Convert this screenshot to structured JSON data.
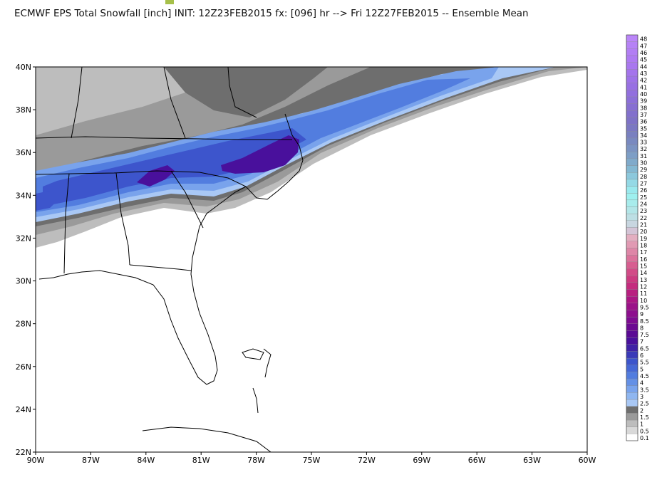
{
  "title": "ECMWF EPS Total Snowfall [inch] INIT: 12Z23FEB2015 fx: [096] hr --> Fri 12Z27FEB2015 -- Ensemble Mean",
  "map": {
    "lat_labels": [
      "40N",
      "38N",
      "36N",
      "34N",
      "32N",
      "30N",
      "28N",
      "26N",
      "24N",
      "22N"
    ],
    "lon_labels": [
      "90W",
      "87W",
      "84W",
      "81W",
      "78W",
      "75W",
      "72W",
      "69W",
      "66W",
      "63W",
      "60W"
    ],
    "lat_range": [
      22,
      40
    ],
    "lon_range": [
      -90,
      -60
    ]
  },
  "colorbar": {
    "levels": [
      "0.1",
      "0.5",
      "1",
      "1.5",
      "2",
      "2.5",
      "3",
      "3.5",
      "4",
      "4.5",
      "5",
      "5.5",
      "6",
      "6.5",
      "7",
      "7.5",
      "8",
      "8.5",
      "9",
      "9.5",
      "10",
      "11",
      "12",
      "13",
      "14",
      "15",
      "16",
      "17",
      "18",
      "19",
      "20",
      "21",
      "22",
      "23",
      "24",
      "25",
      "26",
      "27",
      "28",
      "29",
      "30",
      "31",
      "32",
      "33",
      "34",
      "35",
      "36",
      "37",
      "38",
      "39",
      "40",
      "41",
      "42",
      "43",
      "44",
      "45",
      "46",
      "47",
      "48"
    ],
    "colors": [
      "#ffffff",
      "#d9d9d9",
      "#bdbdbd",
      "#9a9a9a",
      "#6e6e6e",
      "#a9c8f5",
      "#8fb6f0",
      "#79a3ec",
      "#6490e6",
      "#527ddf",
      "#4668d6",
      "#3d55cc",
      "#3a3ab8",
      "#3f22a6",
      "#49109c",
      "#5a0a94",
      "#6c0a92",
      "#7e0c92",
      "#8d0f8e",
      "#9b1288",
      "#ab1684",
      "#b82080",
      "#c42c7e",
      "#cc3a80",
      "#d24b87",
      "#d75e90",
      "#db729b",
      "#de86a7",
      "#e19ab3",
      "#e3aec0",
      "#d4c4d6",
      "#c8d6e0",
      "#bddfe4",
      "#b3e6e8",
      "#a8ecec",
      "#9ef0ef",
      "#9ae9ee",
      "#94d9e6",
      "#8cc8dc",
      "#84b8d2",
      "#80aacb",
      "#7d9ec6",
      "#7b93c2",
      "#7989c0",
      "#7980c0",
      "#7b78c2",
      "#7e72c6",
      "#8270cc",
      "#876fd2",
      "#8c6fd8",
      "#926fde",
      "#9870e3",
      "#9e72e8",
      "#a474ec",
      "#a977ef",
      "#ae7af2",
      "#b27ef4",
      "#b682f6",
      "#ba86f8"
    ]
  }
}
